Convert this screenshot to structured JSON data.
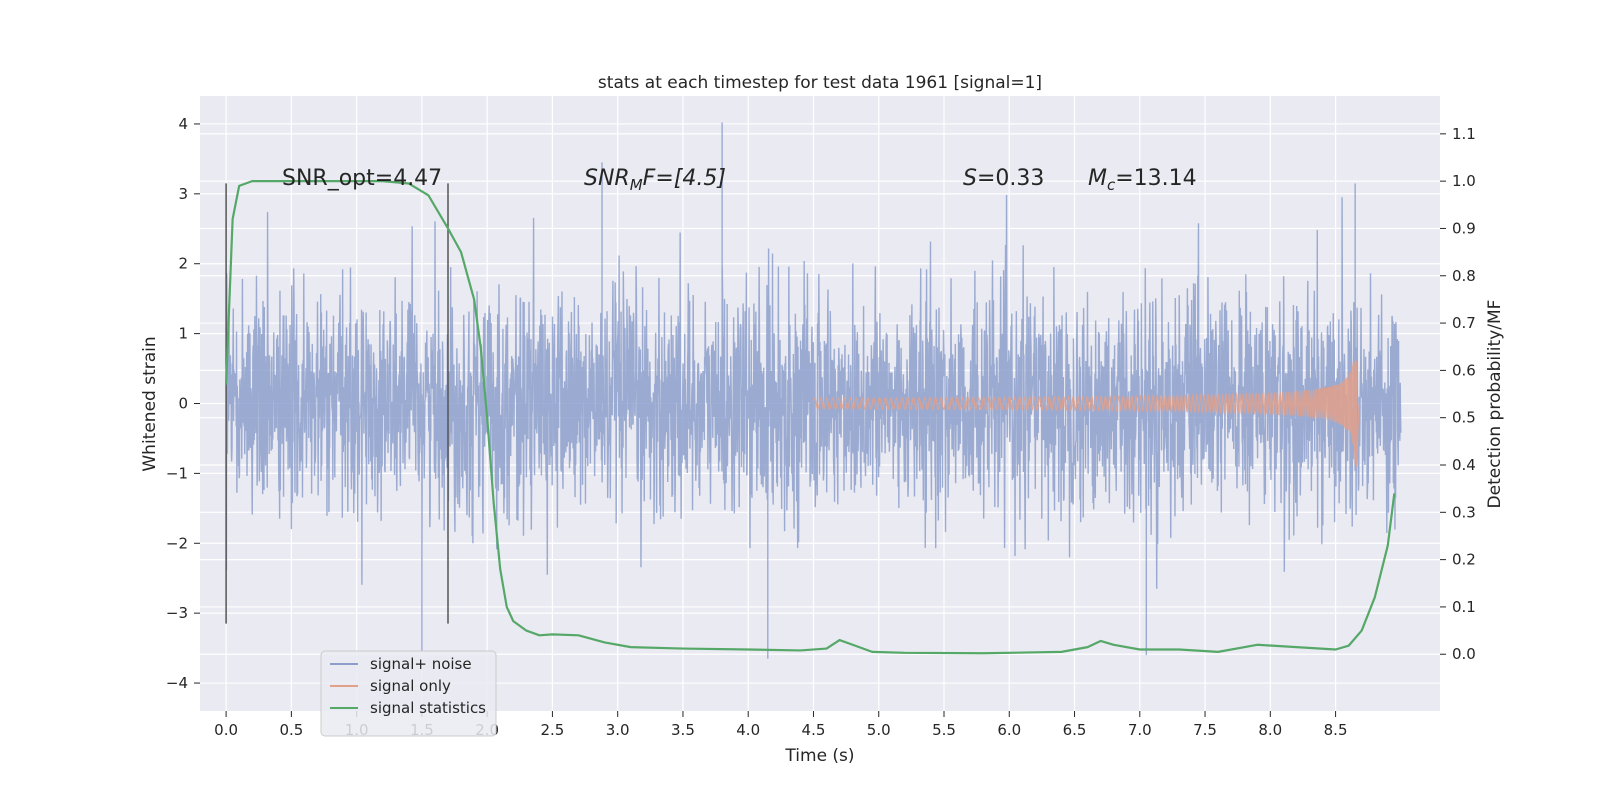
{
  "chart_data": {
    "type": "line",
    "title": "stats at each timestep for test data 1961 [signal=1]",
    "xlabel": "Time (s)",
    "ylabel": "Whitened strain",
    "y2label": "Detection probability/MF",
    "xlim": [
      -0.2,
      9.3
    ],
    "ylim": [
      -4.4,
      4.4
    ],
    "y2lim": [
      -0.12,
      1.18
    ],
    "x_ticks": [
      0.0,
      0.5,
      1.0,
      1.5,
      2.0,
      2.5,
      3.0,
      3.5,
      4.0,
      4.5,
      5.0,
      5.5,
      6.0,
      6.5,
      7.0,
      7.5,
      8.0,
      8.5
    ],
    "x_tick_labels": [
      "0.0",
      "0.5",
      "1.0",
      "1.5",
      "2.0",
      "2.5",
      "3.0",
      "3.5",
      "4.0",
      "4.5",
      "5.0",
      "5.5",
      "6.0",
      "6.5",
      "7.0",
      "7.5",
      "8.0",
      "8.5"
    ],
    "y_ticks": [
      4,
      3,
      2,
      1,
      0,
      -1,
      -2,
      -3,
      -4
    ],
    "y_tick_labels": [
      "4",
      "3",
      "2",
      "1",
      "0",
      "−1",
      "−2",
      "−3",
      "−4"
    ],
    "y2_ticks": [
      1.1,
      1.0,
      0.9,
      0.8,
      0.7,
      0.6,
      0.5,
      0.4,
      0.3,
      0.2,
      0.1,
      0.0
    ],
    "y2_tick_labels": [
      "1.1",
      "1.0",
      "0.9",
      "0.8",
      "0.7",
      "0.6",
      "0.5",
      "0.4",
      "0.3",
      "0.2",
      "0.1",
      "0.0"
    ],
    "grid": true,
    "legend_position": "lower-left",
    "annotations": {
      "snr_opt": "SNR_opt=4.47",
      "snr_mf_main": "SNR",
      "snr_mf_sub": "M",
      "snr_mf_rest": "F=[4.5]",
      "s_main": "S",
      "s_rest": "=0.33",
      "mc_main": "M",
      "mc_sub": "c",
      "mc_rest": "=13.14"
    },
    "vertical_lines_x": [
      0.0,
      1.7
    ],
    "noise_duration": 9.0,
    "signal_end": 8.66,
    "series": [
      {
        "name": "signal+ noise",
        "color": "#8c9fcb",
        "style": "dense noise, amplitude ~1 sigma, peaks to about 4.0 near t=3.8 and -3.6 near t=4.15"
      },
      {
        "name": "signal only",
        "color": "#e2a18b",
        "style": "chirp growing to about +0.6 / -0.9 at t=8.66"
      },
      {
        "name": "signal statistics",
        "color": "#55a868",
        "x": [
          0.0,
          0.05,
          0.1,
          0.2,
          0.4,
          0.8,
          1.2,
          1.4,
          1.55,
          1.7,
          1.8,
          1.9,
          1.95,
          2.0,
          2.05,
          2.1,
          2.15,
          2.2,
          2.3,
          2.4,
          2.5,
          2.7,
          2.9,
          3.1,
          3.5,
          4.0,
          4.4,
          4.6,
          4.7,
          4.8,
          4.95,
          5.2,
          5.8,
          6.4,
          6.6,
          6.7,
          6.8,
          7.0,
          7.3,
          7.6,
          7.9,
          8.2,
          8.5,
          8.6,
          8.7,
          8.8,
          8.9,
          8.95
        ],
        "values": [
          0.57,
          0.92,
          0.99,
          1.0,
          1.0,
          1.0,
          1.0,
          0.995,
          0.97,
          0.9,
          0.85,
          0.75,
          0.65,
          0.5,
          0.32,
          0.18,
          0.1,
          0.07,
          0.05,
          0.04,
          0.042,
          0.04,
          0.025,
          0.015,
          0.012,
          0.01,
          0.008,
          0.012,
          0.03,
          0.02,
          0.005,
          0.003,
          0.002,
          0.005,
          0.015,
          0.028,
          0.02,
          0.01,
          0.01,
          0.005,
          0.02,
          0.015,
          0.01,
          0.018,
          0.05,
          0.12,
          0.23,
          0.34
        ]
      }
    ]
  }
}
